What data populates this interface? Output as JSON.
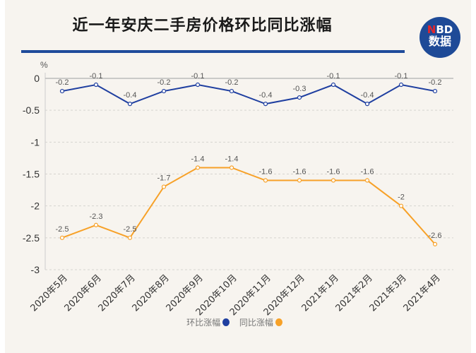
{
  "title": "近一年安庆二手房价格环比同比涨幅",
  "logo": {
    "line1_mark": "N",
    "line1_rest": "BD",
    "line2": "数据"
  },
  "colors": {
    "mom": "#1f3fa0",
    "yoy": "#f7a128",
    "title_rule": "#1f4b9b",
    "background": "#f7f4ef"
  },
  "chart_data": {
    "type": "line",
    "title": "近一年安庆二手房价格环比同比涨幅",
    "ylabel": "%",
    "ylim": [
      -3,
      0
    ],
    "yticks": [
      "0",
      "-0.5",
      "-1",
      "-1.5",
      "-2",
      "-2.5",
      "-3"
    ],
    "categories": [
      "2020年5月",
      "2020年6月",
      "2020年7月",
      "2020年8月",
      "2020年9月",
      "2020年10月",
      "2020年11月",
      "2020年12月",
      "2021年1月",
      "2021年2月",
      "2021年3月",
      "2021年4月"
    ],
    "series": [
      {
        "name": "环比涨幅",
        "values": [
          -0.2,
          -0.1,
          -0.4,
          -0.2,
          -0.1,
          -0.2,
          -0.4,
          -0.3,
          -0.1,
          -0.4,
          -0.1,
          -0.2
        ]
      },
      {
        "name": "同比涨幅",
        "values": [
          -2.5,
          -2.3,
          -2.5,
          -1.7,
          -1.4,
          -1.4,
          -1.6,
          -1.6,
          -1.6,
          -1.6,
          -2,
          -2.6
        ]
      }
    ],
    "legend_position": "bottom"
  }
}
